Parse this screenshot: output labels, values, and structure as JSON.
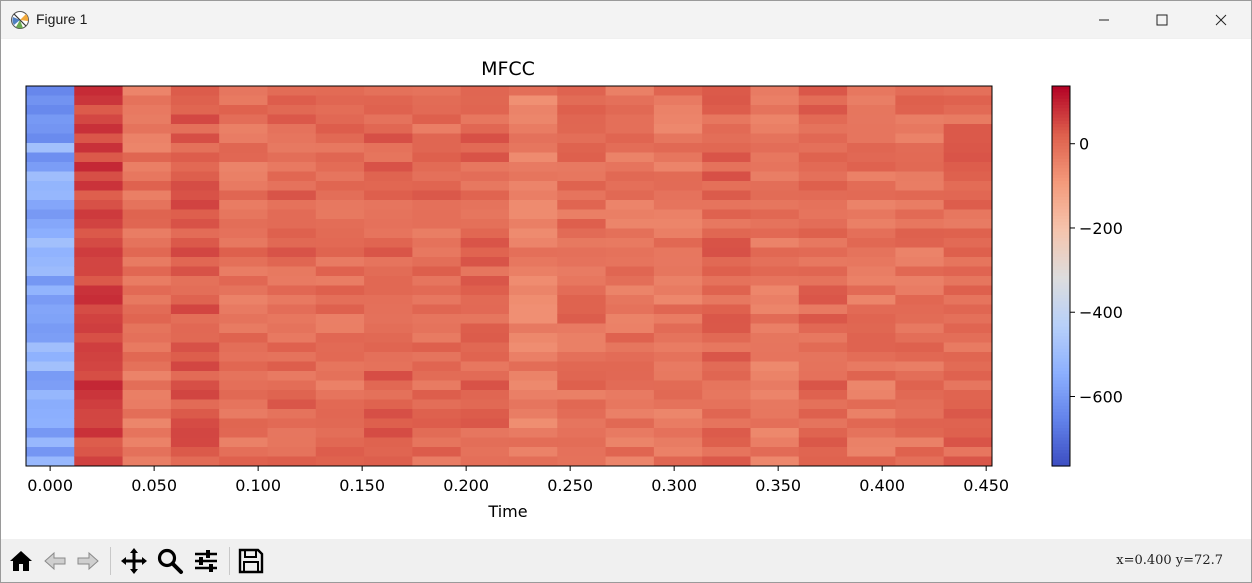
{
  "window": {
    "title": "Figure 1"
  },
  "toolbar": {
    "buttons": [
      "home-icon",
      "back-icon",
      "forward-icon",
      "pan-icon",
      "zoom-icon",
      "configure-icon",
      "save-icon"
    ],
    "coords": "x=0.400  y=72.7"
  },
  "chart_data": {
    "type": "heatmap",
    "title": "MFCC",
    "xlabel": "Time",
    "ylabel": "",
    "x_ticks": [
      "0.000",
      "0.050",
      "0.100",
      "0.150",
      "0.200",
      "0.250",
      "0.300",
      "0.350",
      "0.400",
      "0.450"
    ],
    "x_tick_values": [
      0.0,
      0.05,
      0.1,
      0.15,
      0.2,
      0.25,
      0.3,
      0.35,
      0.4,
      0.45
    ],
    "xlim": [
      -0.0116,
      0.4528
    ],
    "frame_step": 0.02322,
    "n_frames": 20,
    "n_coefficients": 40,
    "y_ticks": "none",
    "colormap": "coolwarm",
    "colorbar": {
      "ticks": [
        "0",
        "−200",
        "−400",
        "−600"
      ],
      "tick_values": [
        0,
        -200,
        -400,
        -600
      ],
      "vmin": -765,
      "vmax": 137
    },
    "frame_mean_values": [
      -560,
      60,
      -15,
      25,
      -10,
      5,
      -5,
      15,
      0,
      10,
      -35,
      -5,
      -15,
      -20,
      10,
      -25,
      5,
      -15,
      -10,
      5
    ],
    "grid": false
  }
}
